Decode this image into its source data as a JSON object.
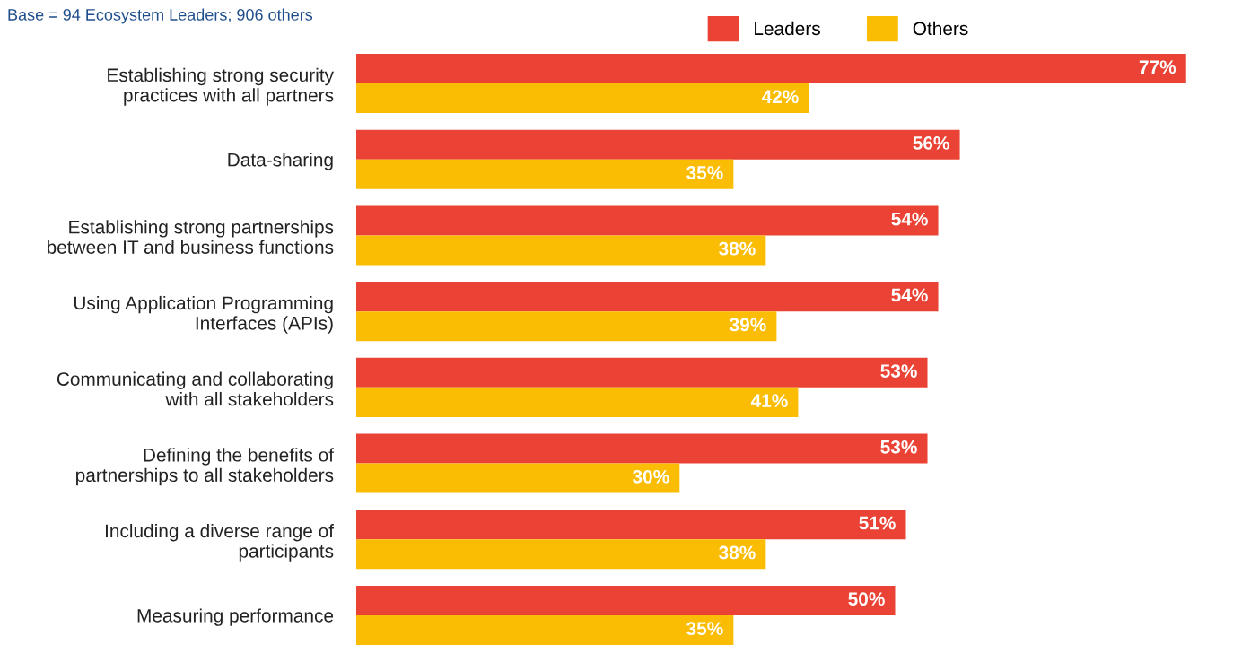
{
  "chart_data": {
    "type": "bar",
    "orientation": "horizontal",
    "categories": [
      "Establishing strong security\npractices with all partners",
      "Data-sharing",
      "Establishing strong partnerships\nbetween IT and business functions",
      "Using Application Programming\nInterfaces (APIs)",
      "Communicating and collaborating\nwith all stakeholders",
      "Defining the benefits of\npartnerships to all stakeholders",
      "Including a diverse range of\nparticipants",
      "Measuring performance"
    ],
    "series": [
      {
        "name": "Leaders",
        "color": "#ea4335",
        "values": [
          77,
          56,
          54,
          54,
          53,
          53,
          51,
          50
        ],
        "value_labels": [
          "77%",
          "56%",
          "54%",
          "54%",
          "53%",
          "53%",
          "51%",
          "50%"
        ]
      },
      {
        "name": "Others",
        "color": "#fbbc04",
        "values": [
          42,
          35,
          38,
          39,
          41,
          30,
          38,
          35
        ],
        "value_labels": [
          "42%",
          "35%",
          "38%",
          "39%",
          "41%",
          "30%",
          "38%",
          "35%"
        ]
      }
    ],
    "annotations": [
      "Base = 94 Ecosystem Leaders; 906 others"
    ],
    "legend": "top",
    "grid": false
  }
}
